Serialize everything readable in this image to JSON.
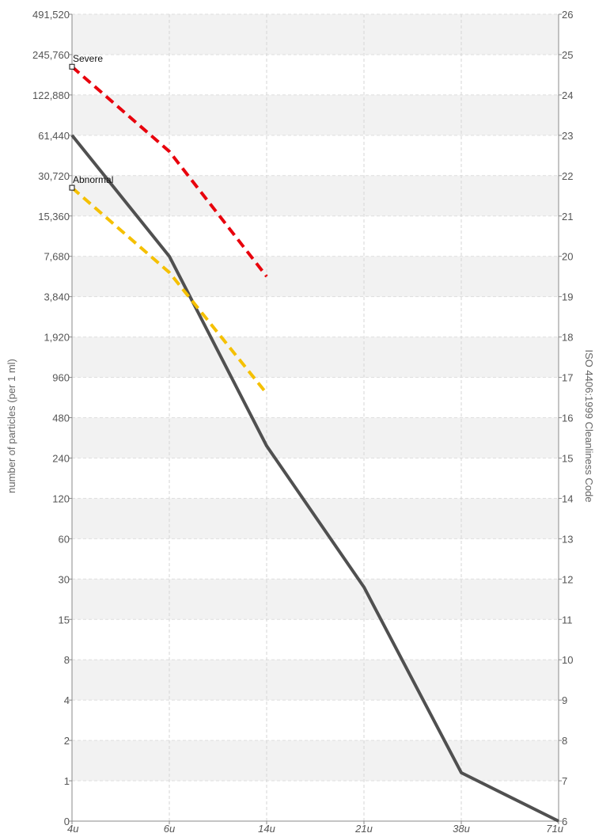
{
  "chart_data": {
    "type": "line",
    "ylabel": "number of particles (per 1 ml)",
    "ylabel_right": "ISO 4406:1999 Cleanliness Code",
    "categories": [
      "4u",
      "6u",
      "14u",
      "21u",
      "38u",
      "71u"
    ],
    "y_ticks": [
      "0",
      "1",
      "2",
      "4",
      "8",
      "15",
      "30",
      "60",
      "120",
      "240",
      "480",
      "960",
      "1,920",
      "3,840",
      "7,680",
      "15,360",
      "30,720",
      "61,440",
      "122,880",
      "245,760",
      "491,520"
    ],
    "y_ticks_right": [
      "6",
      "7",
      "8",
      "9",
      "10",
      "11",
      "12",
      "13",
      "14",
      "15",
      "16",
      "17",
      "18",
      "19",
      "20",
      "21",
      "22",
      "23",
      "24",
      "25",
      "26"
    ],
    "y_code_range": [
      6,
      26
    ],
    "grid": true,
    "series": [
      {
        "name": "",
        "color": "#505050",
        "style": "solid",
        "x_index": [
          0,
          1,
          2,
          3,
          4,
          5
        ],
        "code_values": [
          23,
          20,
          15.3,
          11.8,
          7.2,
          6
        ]
      },
      {
        "name": "",
        "color": "#e8000c",
        "style": "dashed",
        "x_index": [
          0,
          1,
          2
        ],
        "code_values": [
          24.7,
          22.6,
          19.5
        ]
      },
      {
        "name": "",
        "color": "#f5c000",
        "style": "dashed",
        "x_index": [
          0,
          1,
          2
        ],
        "code_values": [
          21.7,
          19.6,
          16.6
        ]
      }
    ],
    "annotations": [
      {
        "text": "Severe",
        "x_index": 0,
        "code": 24.7
      },
      {
        "text": "Abnormal",
        "x_index": 0,
        "code": 21.7
      }
    ]
  }
}
